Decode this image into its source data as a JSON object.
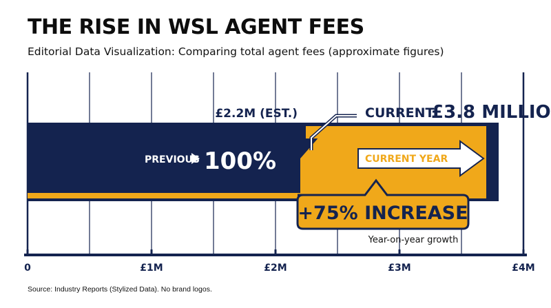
{
  "chart_data": {
    "type": "bar",
    "title": "THE RISE IN WSL AGENT FEES",
    "subtitle": "Editorial Data Visualization: Comparing total agent fees (approximate figures)",
    "xlim": [
      0,
      4000000
    ],
    "x_ticks": [
      {
        "value": 0,
        "label": "0"
      },
      {
        "value": 1000000,
        "label": "£1M"
      },
      {
        "value": 2000000,
        "label": "£2M"
      },
      {
        "value": 3000000,
        "label": "£3M"
      },
      {
        "value": 4000000,
        "label": "£4M"
      }
    ],
    "grid": true,
    "bars": [
      {
        "key": "previous",
        "value": 2200000,
        "value_label": "£2.2M (EST.)",
        "inner_label": "PREVIOUS",
        "inner_value": "100%",
        "color": "#14234f"
      },
      {
        "key": "current",
        "value": 3800000,
        "value_label_prefix": "CURRENT",
        "value_label": "£3.8 MILLION",
        "inner_label": "CURRENT YEAR",
        "color": "#f0a81a"
      }
    ],
    "annotations": {
      "increase": "+75% INCREASE",
      "increase_note": "Year-on-year growth"
    }
  },
  "source": "Source: Industry Reports (Stylized Data). No brand logos.",
  "colors": {
    "navy": "#14234f",
    "gold": "#f0a81a",
    "white": "#ffffff",
    "grid": "#14234f"
  }
}
